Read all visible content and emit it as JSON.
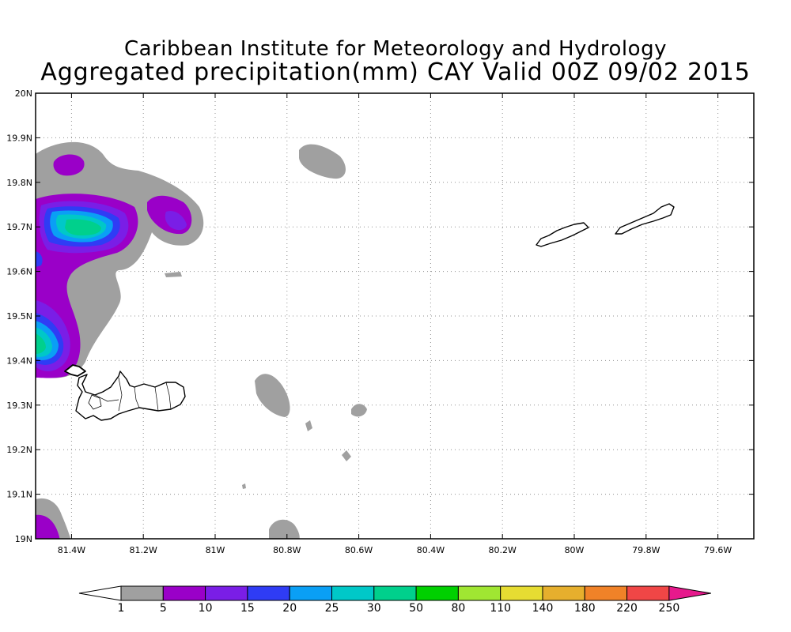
{
  "title": {
    "line1": "Caribbean Institute for Meteorology and Hydrology",
    "line2": "Aggregated precipitation(mm) CAY Valid 00Z 09/02 2015"
  },
  "map": {
    "lon_range": [
      -81.5,
      -79.5
    ],
    "lat_range": [
      19.0,
      20.0
    ],
    "lon_ticks": [
      {
        "value": -81.4,
        "label": "81.4W"
      },
      {
        "value": -81.2,
        "label": "81.2W"
      },
      {
        "value": -81.0,
        "label": "81W"
      },
      {
        "value": -80.8,
        "label": "80.8W"
      },
      {
        "value": -80.6,
        "label": "80.6W"
      },
      {
        "value": -80.4,
        "label": "80.4W"
      },
      {
        "value": -80.2,
        "label": "80.2W"
      },
      {
        "value": -80.0,
        "label": "80W"
      },
      {
        "value": -79.8,
        "label": "79.8W"
      },
      {
        "value": -79.6,
        "label": "79.6W"
      }
    ],
    "lat_ticks": [
      {
        "value": 19.0,
        "label": "19N"
      },
      {
        "value": 19.1,
        "label": "19.1N"
      },
      {
        "value": 19.2,
        "label": "19.2N"
      },
      {
        "value": 19.3,
        "label": "19.3N"
      },
      {
        "value": 19.4,
        "label": "19.4N"
      },
      {
        "value": 19.5,
        "label": "19.5N"
      },
      {
        "value": 19.6,
        "label": "19.6N"
      },
      {
        "value": 19.7,
        "label": "19.7N"
      },
      {
        "value": 19.8,
        "label": "19.8N"
      },
      {
        "value": 19.9,
        "label": "19.9N"
      },
      {
        "value": 20.0,
        "label": "20N"
      }
    ],
    "grid": true
  },
  "colorbar": {
    "levels": [
      "1",
      "5",
      "10",
      "15",
      "20",
      "25",
      "30",
      "50",
      "80",
      "110",
      "140",
      "180",
      "220",
      "250"
    ],
    "colors": [
      "#a0a0a0",
      "#9a00c8",
      "#7a1ee6",
      "#2f3cf5",
      "#0a9ff5",
      "#00c8c8",
      "#00d08c",
      "#00d000",
      "#a0e632",
      "#e6dc32",
      "#e6af2d",
      "#f08228",
      "#f04646"
    ],
    "below_color": "#ffffff",
    "above_color": "#e6198c"
  }
}
